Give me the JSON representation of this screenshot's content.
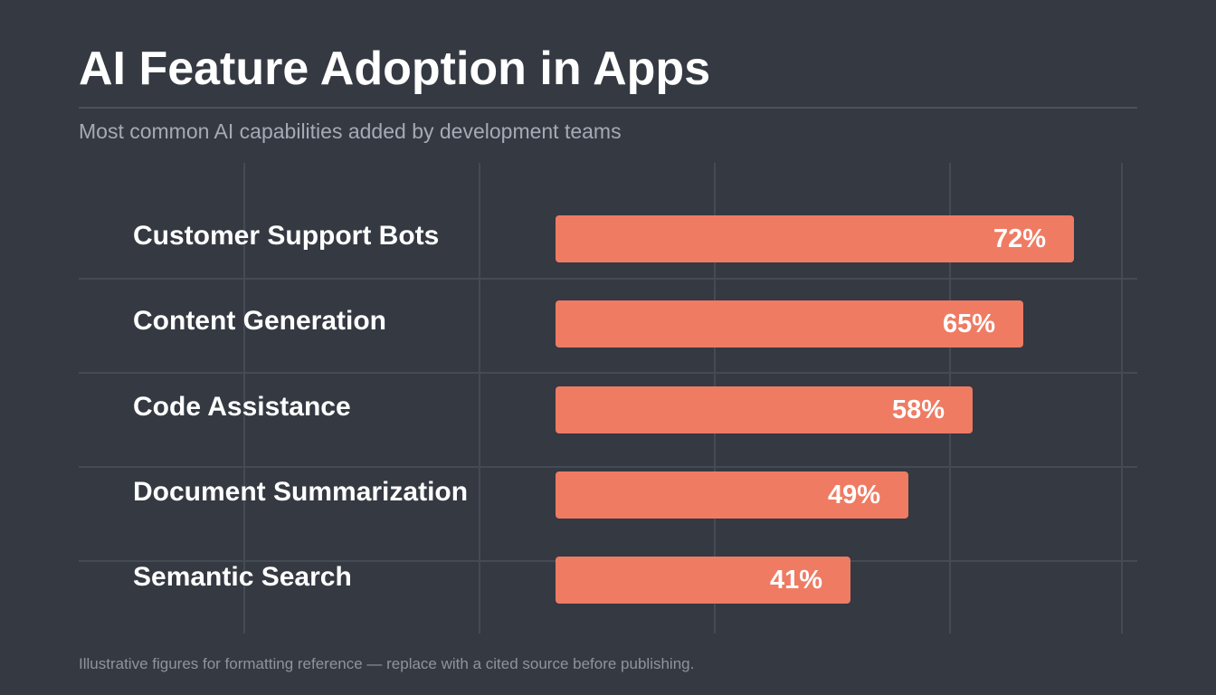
{
  "header": {
    "title": "AI Feature Adoption in Apps",
    "subtitle": "Most common AI capabilities added by development teams"
  },
  "footer": {
    "note": "Illustrative figures for formatting reference — replace with a cited source before publishing."
  },
  "colors": {
    "background": "#343942",
    "bar": "#ef7b63",
    "grid": "#454b55",
    "text": "#ffffff",
    "subtitle": "#a5abb4"
  },
  "chart_data": {
    "type": "bar",
    "orientation": "horizontal",
    "title": "AI Feature Adoption in Apps",
    "subtitle": "Most common AI capabilities added by development teams",
    "categories": [
      "Customer Support Bots",
      "Content Generation",
      "Code Assistance",
      "Document Summarization",
      "Semantic Search"
    ],
    "values": [
      72,
      65,
      58,
      49,
      41
    ],
    "value_labels": [
      "72%",
      "65%",
      "58%",
      "49%",
      "41%"
    ],
    "unit": "%",
    "xlim": [
      0,
      100
    ],
    "grid": true,
    "legend": "none"
  }
}
